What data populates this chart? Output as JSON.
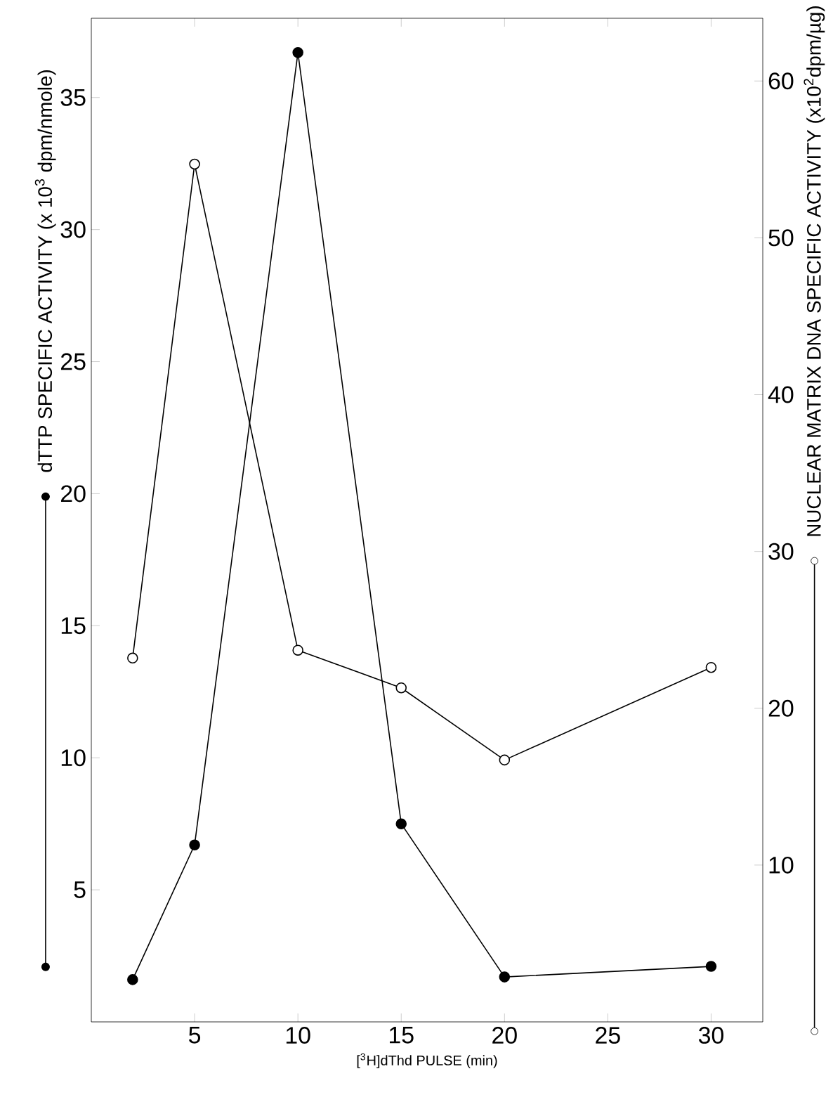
{
  "chart_data": {
    "type": "line",
    "xlabel": "[$^{3}$H]dThd PULSE (min)",
    "ylabel": "dTTP SPECIFIC ACTIVITY (x 10$^{3}$ dpm/nmole)",
    "y2label": "NUCLEAR MATRIX DNA SPECIFIC ACTIVITY (x10$^{2}$dpm/µg)",
    "xlim": [
      0,
      32.5
    ],
    "xticks": [
      5,
      10,
      15,
      20,
      25,
      30
    ],
    "ylim": [
      0,
      38
    ],
    "yticks": [
      5,
      10,
      15,
      20,
      25,
      30,
      35
    ],
    "y2lim": [
      0,
      64
    ],
    "y2ticks": [
      10,
      20,
      30,
      40,
      50,
      60
    ],
    "marker": "circle",
    "line_style": "solid",
    "series": [
      {
        "color": "#000000",
        "x": [
          2,
          5,
          10,
          15,
          20,
          30
        ],
        "values": [
          1.6,
          6.7,
          36.7,
          7.5,
          1.7,
          2.1
        ]
      },
      {
        "color": "#000000",
        "axis": "y2",
        "x": [
          2,
          5,
          10,
          15,
          20,
          30
        ],
        "values": [
          23.2,
          54.7,
          23.7,
          21.3,
          16.7,
          22.6
        ]
      }
    ]
  }
}
